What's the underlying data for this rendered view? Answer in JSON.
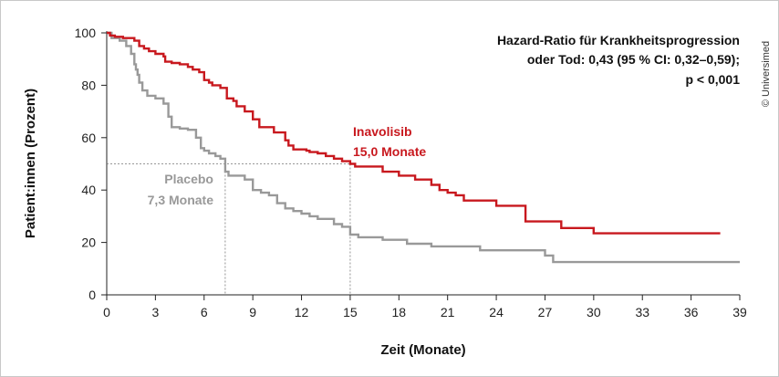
{
  "chart_data": {
    "type": "line",
    "step": true,
    "xlabel": "Zeit (Monate)",
    "ylabel": "Patient:innen (Prozent)",
    "xlim": [
      0,
      39
    ],
    "ylim": [
      0,
      100
    ],
    "xticks": [
      0,
      3,
      6,
      9,
      12,
      15,
      18,
      21,
      24,
      27,
      30,
      33,
      36,
      39
    ],
    "yticks": [
      0,
      20,
      40,
      60,
      80,
      100
    ],
    "grid": false,
    "reference_level": 50,
    "hazard_ratio_lines": [
      "Hazard-Ratio für Krankheitsprogression",
      "oder Tod: 0,43 (95 % CI: 0,32–0,59);",
      "p < 0,001"
    ],
    "credit": "© Universimed",
    "colors": {
      "inavolisib": "#c8181e",
      "placebo": "#999999"
    },
    "series": [
      {
        "name": "Inavolisib",
        "median_label": "15,0 Monate",
        "median": 15.0,
        "x": [
          0,
          0.2,
          0.5,
          1.0,
          1.7,
          2.0,
          2.3,
          2.6,
          3.0,
          3.5,
          3.6,
          4.0,
          4.5,
          5.0,
          5.3,
          5.7,
          6.0,
          6.3,
          6.5,
          7.0,
          7.4,
          7.8,
          8.0,
          8.5,
          9.0,
          9.4,
          9.7,
          10.0,
          10.3,
          11.0,
          11.2,
          11.5,
          12.0,
          12.3,
          12.5,
          13.0,
          13.5,
          14.0,
          14.5,
          15.0,
          15.3,
          16.0,
          17.0,
          18.0,
          19.0,
          20.0,
          20.5,
          21.0,
          21.5,
          22.0,
          24.0,
          25.8,
          26.0,
          28.0,
          30.0,
          37.8
        ],
        "y": [
          100,
          99,
          98.5,
          98,
          97,
          95,
          94,
          93,
          92,
          91,
          89,
          88.5,
          88,
          87,
          86,
          85,
          82,
          81,
          80,
          79,
          75,
          74,
          72,
          70,
          67,
          64,
          64,
          64,
          62,
          59,
          57,
          55.5,
          55.5,
          55,
          54.5,
          54,
          53,
          52,
          51,
          50,
          49,
          49,
          47,
          45.5,
          44,
          42,
          40,
          39,
          38,
          36,
          34,
          28,
          28,
          25.5,
          23.5,
          23.5
        ]
      },
      {
        "name": "Placebo",
        "median_label": "7,3 Monate",
        "median": 7.3,
        "x": [
          0,
          0.3,
          0.8,
          1.2,
          1.5,
          1.7,
          1.8,
          1.9,
          2.0,
          2.2,
          2.5,
          3.0,
          3.5,
          3.8,
          4.0,
          4.5,
          5.0,
          5.5,
          5.8,
          6.0,
          6.3,
          6.7,
          7.0,
          7.3,
          7.5,
          8.5,
          9.0,
          9.5,
          10.0,
          10.5,
          11.0,
          11.5,
          12.0,
          12.5,
          13.0,
          14.0,
          14.5,
          15.0,
          15.5,
          17.0,
          18.5,
          20.0,
          23.0,
          26.0,
          27.0,
          27.5,
          39.0
        ],
        "y": [
          100,
          98,
          97,
          95,
          92,
          88,
          86,
          84,
          81,
          78,
          76,
          75,
          73,
          68,
          64,
          63.5,
          63,
          60,
          56,
          55,
          54,
          53,
          52,
          47,
          45.5,
          44,
          40,
          39,
          38,
          35,
          33,
          32,
          31,
          30,
          29,
          27,
          26,
          23,
          22,
          21,
          19.5,
          18.5,
          17,
          17,
          15,
          12.5,
          12.5
        ]
      }
    ]
  }
}
